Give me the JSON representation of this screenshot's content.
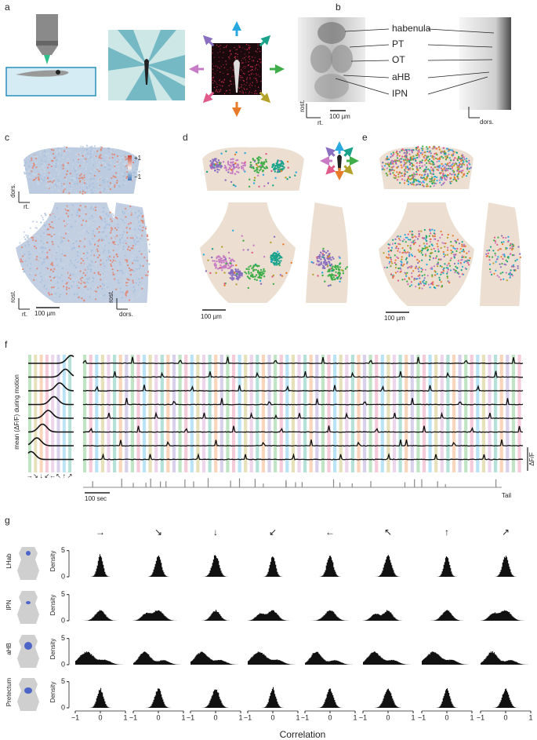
{
  "panels": {
    "a": {
      "letter": "a"
    },
    "b": {
      "letter": "b",
      "labels": [
        "habenula",
        "PT",
        "OT",
        "aHB",
        "IPN"
      ],
      "rost": "rost.",
      "rt": "rt.",
      "dors": "dors.",
      "scale": "100 µm"
    },
    "c": {
      "letter": "c",
      "colorbar": [
        "+1",
        "−1"
      ],
      "dors": "dors.",
      "rt": "rt.",
      "rost": "rost.",
      "scale": "100 µm"
    },
    "d": {
      "letter": "d",
      "scale": "100 µm"
    },
    "e": {
      "letter": "e",
      "scale": "100 µm"
    },
    "f": {
      "letter": "f",
      "ylabel": "mean (ΔF/F) during motion",
      "scale": "100 sec",
      "dff": "ΔF/F",
      "tail": "Tail"
    },
    "g": {
      "letter": "g",
      "directions": [
        "→",
        "↘",
        "↓",
        "↙",
        "←",
        "↖",
        "↑",
        "↗"
      ],
      "regions": [
        "LHab",
        "IPN",
        "aHB",
        "Pretectum"
      ],
      "ylabel": "Density",
      "yticks": [
        0,
        5
      ],
      "xticks": [
        {
          "value": -1,
          "label": "−1"
        },
        0,
        1
      ],
      "xlabel": "Correlation"
    }
  }
}
